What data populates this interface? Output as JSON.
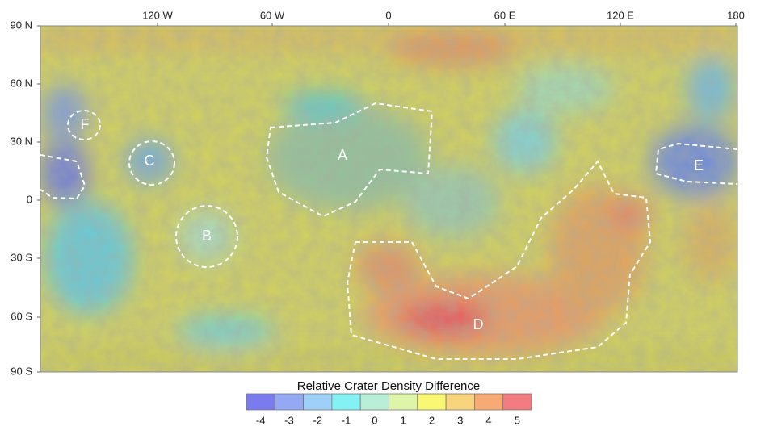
{
  "map": {
    "longitude_labels": [
      "120 W",
      "60 W",
      "0",
      "60 E",
      "120 E",
      "180"
    ],
    "latitude_labels": [
      "90 N",
      "60 N",
      "30 N",
      "0",
      "30 S",
      "60 S",
      "90 S"
    ],
    "regions": [
      "A",
      "B",
      "C",
      "D",
      "E",
      "F"
    ],
    "legend": {
      "title": "Relative Crater Density Difference",
      "ticks": [
        -4,
        -3,
        -2,
        -1,
        0,
        1,
        2,
        3,
        4,
        5
      ],
      "colors": [
        "#7b7bf0",
        "#94a8f4",
        "#9fd0f8",
        "#84f2f4",
        "#b9efd6",
        "#def4a8",
        "#f8f872",
        "#f8d47c",
        "#f8aa74",
        "#f27c80"
      ]
    }
  }
}
